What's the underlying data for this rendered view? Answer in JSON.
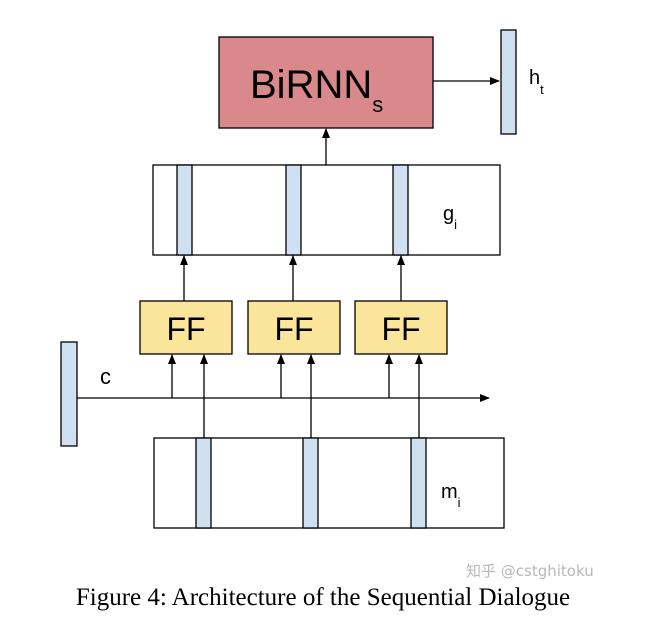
{
  "diagram": {
    "birnn": {
      "label": "BiRNN",
      "subscript": "s",
      "fill": "#d9888c"
    },
    "output": {
      "label": "h",
      "subscript": "t"
    },
    "g_layer": {
      "label": "g",
      "subscript": "i"
    },
    "ff_blocks": [
      "FF",
      "FF",
      "FF"
    ],
    "ff_fill": "#fbe59a",
    "context": {
      "label": "c"
    },
    "m_layer": {
      "label": "m",
      "subscript": "i"
    },
    "vector_fill": "#cfe0f1"
  },
  "caption": "Figure 4: Architecture of the Sequential Dialogue",
  "watermark": "知乎 @cstghitoku"
}
